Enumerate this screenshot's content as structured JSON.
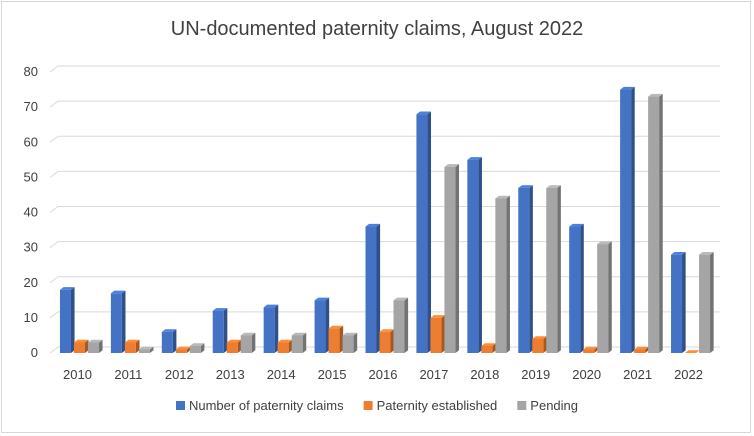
{
  "chart_data": {
    "type": "bar",
    "style": "3d-clustered-column",
    "title": "UN-documented paternity claims, August 2022",
    "xlabel": "",
    "ylabel": "",
    "categories": [
      "2010",
      "2011",
      "2012",
      "2013",
      "2014",
      "2015",
      "2016",
      "2017",
      "2018",
      "2019",
      "2020",
      "2021",
      "2022"
    ],
    "series": [
      {
        "name": "Number of paternity claims",
        "color": "#4472c4",
        "values": [
          18,
          17,
          6,
          12,
          13,
          15,
          36,
          68,
          55,
          47,
          36,
          75,
          28
        ]
      },
      {
        "name": "Paternity established",
        "color": "#ed7d31",
        "values": [
          3,
          3,
          1,
          3,
          3,
          7,
          6,
          10,
          2,
          4,
          1,
          1,
          0
        ]
      },
      {
        "name": "Pending",
        "color": "#a5a5a5",
        "values": [
          3,
          1,
          2,
          5,
          5,
          5,
          15,
          53,
          44,
          47,
          31,
          73,
          28
        ]
      }
    ],
    "ylim": [
      0,
      80
    ],
    "yticks": [
      "0",
      "10",
      "20",
      "30",
      "40",
      "50",
      "60",
      "70",
      "80"
    ],
    "grid": true,
    "legend_position": "bottom"
  }
}
